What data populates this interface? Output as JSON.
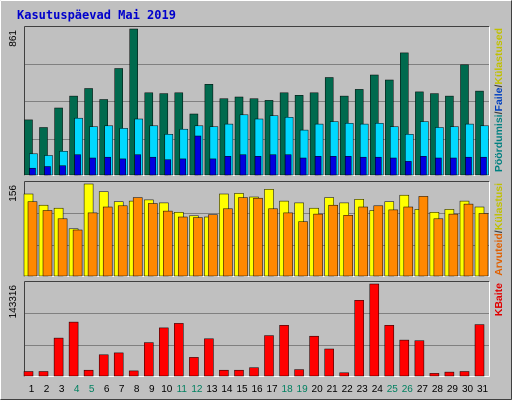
{
  "chart_data": {
    "type": "bar",
    "title": "Kasutuspäevad Mai 2019",
    "categories": [
      "1",
      "2",
      "3",
      "4",
      "5",
      "6",
      "7",
      "8",
      "9",
      "10",
      "11",
      "12",
      "13",
      "14",
      "15",
      "16",
      "17",
      "18",
      "19",
      "20",
      "21",
      "22",
      "23",
      "24",
      "25",
      "26",
      "27",
      "28",
      "29",
      "30",
      "31"
    ],
    "weekend_days": [
      "4",
      "5",
      "11",
      "12",
      "18",
      "19",
      "25",
      "26"
    ],
    "panels": [
      {
        "name": "top",
        "scale_label": "861",
        "ymax": 861,
        "legend": [
          {
            "text": "Pöördumisi",
            "color": "#008080"
          },
          {
            "text": "/",
            "color": "#404040"
          },
          {
            "text": "Faile",
            "color": "#0040c0"
          },
          {
            "text": "/",
            "color": "#404040"
          },
          {
            "text": "Külastused",
            "color": "#c0c000"
          }
        ],
        "series": [
          {
            "name": "Pöördumisi",
            "color": "#006a4e",
            "values": [
              325,
              280,
              395,
              465,
              510,
              445,
              628,
              861,
              485,
              480,
              485,
              360,
              535,
              450,
              460,
              450,
              440,
              485,
              470,
              485,
              575,
              465,
              505,
              590,
              560,
              720,
              490,
              480,
              465,
              650,
              495
            ]
          },
          {
            "name": "Faile",
            "color": "#00d8ff",
            "values": [
              125,
              115,
              140,
              335,
              285,
              290,
              275,
              330,
              290,
              240,
              270,
              290,
              285,
              300,
              355,
              330,
              350,
              340,
              265,
              300,
              315,
              305,
              300,
              305,
              285,
              240,
              315,
              280,
              285,
              300,
              290
            ]
          },
          {
            "name": "Külastused",
            "color": "#0000e0",
            "values": [
              40,
              50,
              55,
              120,
              100,
              105,
              95,
              120,
              105,
              90,
              95,
              230,
              95,
              110,
              120,
              110,
              120,
              120,
              100,
              110,
              110,
              110,
              105,
              105,
              100,
              80,
              110,
              100,
              100,
              105,
              105
            ]
          }
        ]
      },
      {
        "name": "middle",
        "scale_label": "156",
        "ymax": 156,
        "legend": [
          {
            "text": "Arvuteid",
            "color": "#e06000"
          },
          {
            "text": "/",
            "color": "#404040"
          },
          {
            "text": "Külastusi",
            "color": "#c0c000"
          }
        ],
        "series": [
          {
            "name": "Külastusi",
            "color": "#ffff00",
            "values": [
              139,
              120,
              115,
              80,
              156,
              143,
              126,
              127,
              129,
              124,
              108,
              102,
              100,
              139,
              140,
              134,
              147,
              127,
              124,
              115,
              133,
              124,
              130,
              111,
              126,
              137,
              113,
              108,
              113,
              127,
              117
            ]
          },
          {
            "name": "Arvuteid",
            "color": "#ff8800",
            "values": [
              126,
              111,
              97,
              78,
              107,
              117,
              119,
              133,
              123,
              110,
              100,
              99,
              104,
              114,
              133,
              132,
              114,
              107,
              92,
              105,
              120,
              103,
              117,
              119,
              112,
              117,
              135,
              97,
              105,
              122,
              106
            ]
          }
        ]
      },
      {
        "name": "bottom",
        "scale_label": "143316",
        "ymax": 143316,
        "legend": [
          {
            "text": "KBaite",
            "color": "#e00000"
          }
        ],
        "series": [
          {
            "name": "KBaite",
            "color": "#ff0000",
            "values": [
              7000,
              7000,
              59000,
              84000,
              9000,
              33000,
              36000,
              8000,
              52000,
              75000,
              82000,
              29000,
              58000,
              9000,
              9000,
              13000,
              63000,
              79000,
              10000,
              62000,
              42000,
              5000,
              118000,
              143316,
              79000,
              56000,
              55000,
              4000,
              6000,
              7000,
              80000
            ]
          }
        ]
      }
    ]
  }
}
